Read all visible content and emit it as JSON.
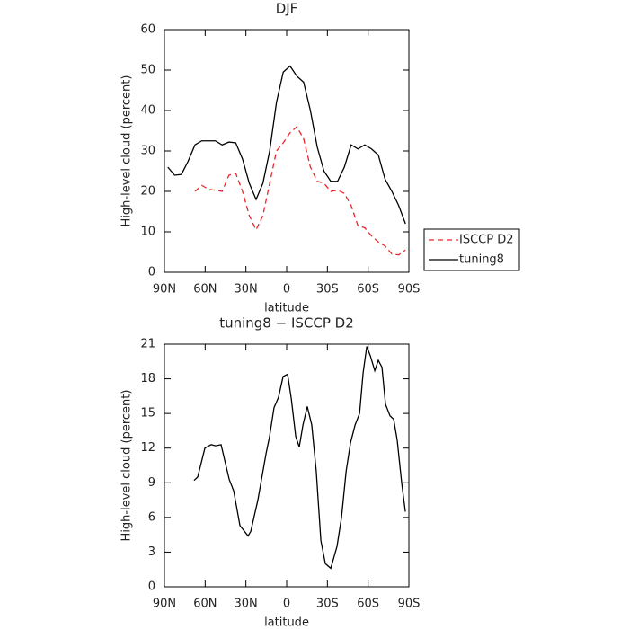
{
  "chart_data": [
    {
      "type": "line",
      "title": "DJF",
      "xlabel": "latitude",
      "ylabel": "High-level cloud (percent)",
      "x": [
        87.5,
        82.5,
        77.5,
        72.5,
        67.5,
        62.5,
        57.5,
        52.5,
        47.5,
        42.5,
        37.5,
        32.5,
        27.5,
        22.5,
        17.5,
        12.5,
        7.5,
        2.5,
        -2.5,
        -7.5,
        -12.5,
        -17.5,
        -22.5,
        -27.5,
        -32.5,
        -37.5,
        -42.5,
        -47.5,
        -52.5,
        -57.5,
        -62.5,
        -67.5,
        -72.5,
        -77.5,
        -82.5,
        -87.5
      ],
      "series": [
        {
          "name": "ISCCP D2",
          "color": "#e8262a",
          "line_style": "dashed",
          "values": [
            null,
            null,
            null,
            null,
            20,
            21.5,
            20.5,
            20.3,
            20,
            24,
            24.5,
            20,
            14,
            10.5,
            14,
            22,
            30,
            32,
            34.5,
            36,
            33,
            26,
            22.5,
            22,
            20,
            20.3,
            19.5,
            16.5,
            11.5,
            11,
            9,
            7.5,
            6.5,
            4.5,
            4.3,
            5.5
          ]
        },
        {
          "name": "tuning8",
          "color": "#000000",
          "line_style": "solid",
          "values": [
            26,
            24,
            24.2,
            27.5,
            31.5,
            32.5,
            32.5,
            32.5,
            31.5,
            32.2,
            32,
            28,
            22,
            18,
            22,
            30,
            42,
            49.5,
            51,
            48.5,
            47,
            40,
            31,
            25,
            22.5,
            22.5,
            26,
            31.5,
            30.5,
            31.5,
            30.5,
            29,
            23,
            20,
            16.5,
            12
          ]
        }
      ],
      "xlim": [
        90,
        -90
      ],
      "ylim": [
        0,
        60
      ],
      "xticks": [
        {
          "value": 90,
          "label": "90N"
        },
        {
          "value": 60,
          "label": "60N"
        },
        {
          "value": 30,
          "label": "30N"
        },
        0,
        {
          "value": -30,
          "label": "30S"
        },
        {
          "value": -60,
          "label": "60S"
        },
        {
          "value": -90,
          "label": "90S"
        }
      ],
      "yticks": [
        0,
        10,
        20,
        30,
        40,
        50,
        60
      ],
      "legend": "right"
    },
    {
      "type": "line",
      "title": "tuning8 − ISCCP D2",
      "xlabel": "latitude",
      "ylabel": "High-level cloud (percent)",
      "x": [
        68.2,
        65.5,
        60.2,
        55.6,
        52.3,
        48.3,
        42.3,
        39.0,
        34.4,
        28.4,
        26.4,
        21.2,
        15.2,
        12.6,
        9.3,
        6.0,
        2.6,
        -0.7,
        -3.4,
        -6.7,
        -9.3,
        -12.0,
        -15.2,
        -18.5,
        -21.8,
        -25.2,
        -28.5,
        -32.5,
        -37.1,
        -40.4,
        -43.8,
        -47.1,
        -50.4,
        -53.7,
        -56.3,
        -59.0,
        -61.6,
        -64.9,
        -67.5,
        -70.2,
        -72.8,
        -76.1,
        -78.8,
        -81.4,
        -84.7,
        -87.4
      ],
      "series": [
        {
          "color": "#000000",
          "line_style": "solid",
          "values": [
            9.2,
            9.5,
            12,
            12.3,
            12.2,
            12.3,
            9.3,
            8.3,
            5.3,
            4.4,
            4.8,
            7.5,
            11.5,
            13,
            15.5,
            16.4,
            18.2,
            18.4,
            16.3,
            13,
            12.1,
            14,
            15.6,
            14,
            10,
            4,
            2,
            1.6,
            3.5,
            6,
            10,
            12.5,
            14,
            15,
            18.5,
            20.8,
            20,
            18.7,
            19.6,
            19,
            15.8,
            14.8,
            14.5,
            12.7,
            9,
            6.5
          ]
        }
      ],
      "xlim": [
        90,
        -90
      ],
      "ylim": [
        0,
        21
      ],
      "xticks": [
        {
          "value": 90,
          "label": "90N"
        },
        {
          "value": 60,
          "label": "60N"
        },
        {
          "value": 30,
          "label": "30N"
        },
        0,
        {
          "value": -30,
          "label": "30S"
        },
        {
          "value": -60,
          "label": "60S"
        },
        {
          "value": -90,
          "label": "90S"
        }
      ],
      "yticks": [
        0,
        3,
        6,
        9,
        12,
        15,
        18,
        21
      ]
    }
  ]
}
